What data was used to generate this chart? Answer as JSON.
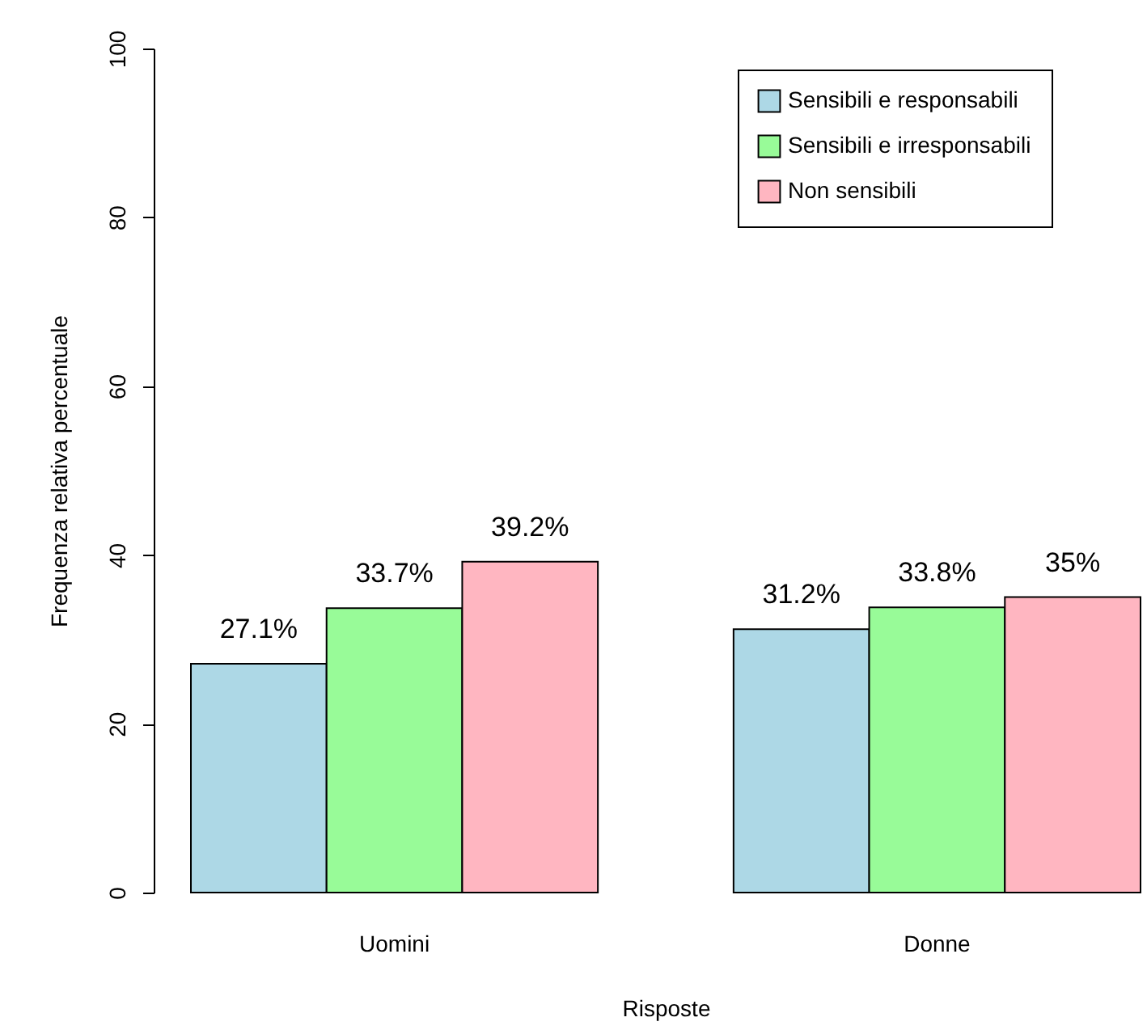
{
  "chart_data": {
    "type": "bar",
    "xlabel": "Risposte",
    "ylabel": "Frequenza relativa percentuale",
    "categories": [
      "Uomini",
      "Donne"
    ],
    "series": [
      {
        "name": "Sensibili e responsabili",
        "color": "#add8e6",
        "values": [
          27.1,
          31.2
        ],
        "value_labels": [
          "27.1%",
          "31.2%"
        ]
      },
      {
        "name": "Sensibili e irresponsabili",
        "color": "#98fb98",
        "values": [
          33.7,
          33.8
        ],
        "value_labels": [
          "33.7%",
          "33.8%"
        ]
      },
      {
        "name": "Non sensibili",
        "color": "#ffb6c1",
        "values": [
          39.2,
          35
        ],
        "value_labels": [
          "39.2%",
          "35%"
        ]
      }
    ],
    "ylim": [
      0,
      100
    ],
    "yticks": [
      0,
      20,
      40,
      60,
      80,
      100
    ],
    "legend": "top right"
  }
}
